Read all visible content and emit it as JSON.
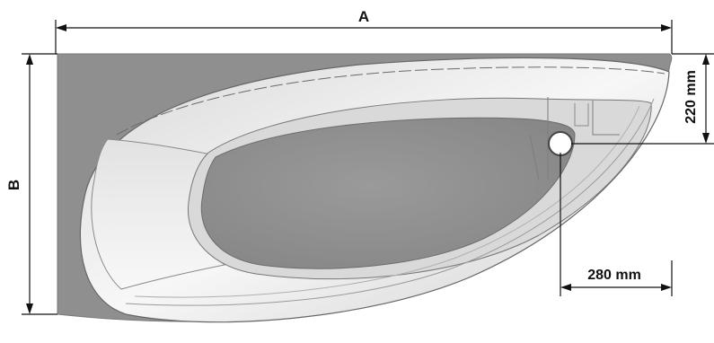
{
  "dimensions": {
    "a_label": "A",
    "b_label": "B",
    "vertical_offset_label": "220 mm",
    "horizontal_offset_label": "280 mm"
  },
  "colors": {
    "bathtub_body": "#8f8f8f",
    "basin_floor": "#8a8a8a",
    "rim_highlight": "#f4f4f4",
    "outline": "#555555",
    "dimension_line": "#111111"
  }
}
